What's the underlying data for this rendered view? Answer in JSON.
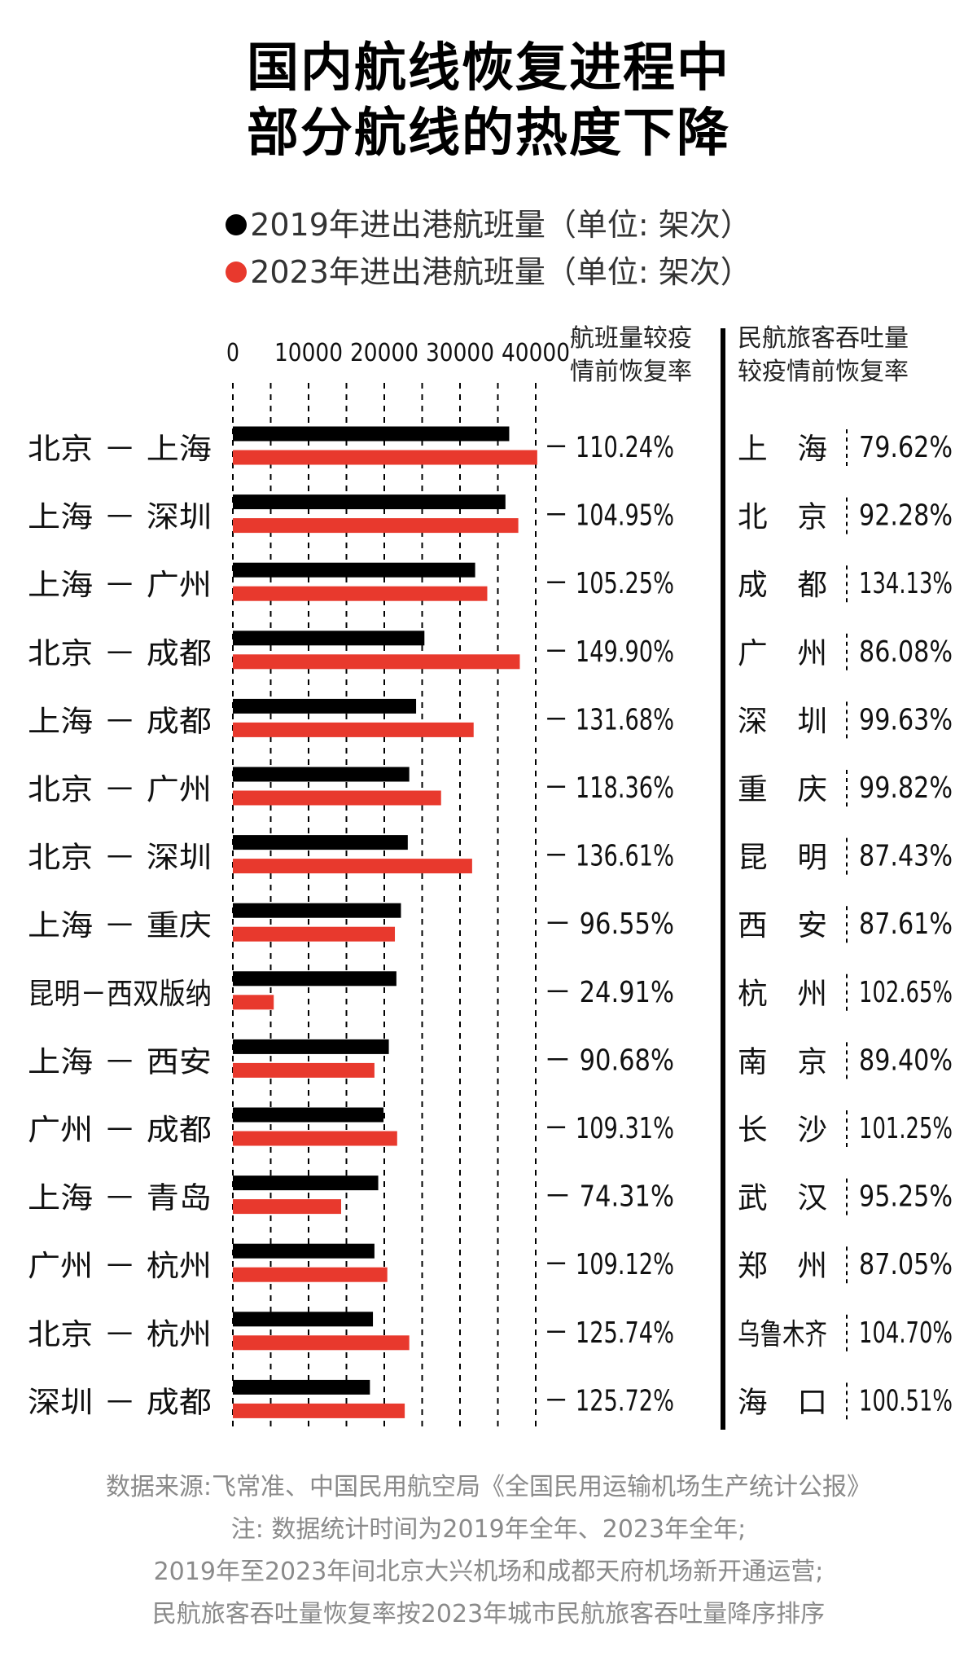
{
  "title": {
    "line1": "国内航线恢复进程中",
    "line2": "部分航线的热度下降"
  },
  "legend": [
    {
      "label": "2019年进出港航班量（单位: 架次）",
      "color": "#000000"
    },
    {
      "label": "2023年进出港航班量（单位: 架次）",
      "color": "#e8392d"
    }
  ],
  "col_headers": {
    "recovery": [
      "航班量较疫",
      "情前恢复率"
    ],
    "passenger": [
      "民航旅客吞吐量",
      "较疫情前恢复率"
    ]
  },
  "chart_data": {
    "type": "bar",
    "orientation": "horizontal",
    "xlim": [
      0,
      40000
    ],
    "x_ticks": [
      "0",
      "10000",
      "20000",
      "30000",
      "40000"
    ],
    "grid": "vertical dashed",
    "categories": [
      "北京 － 上海",
      "上海 － 深圳",
      "上海 － 广州",
      "北京 － 成都",
      "上海 － 成都",
      "北京 － 广州",
      "北京 － 深圳",
      "上海 － 重庆",
      "昆明－西双版纳",
      "上海 － 西安",
      "广州 － 成都",
      "上海 － 青岛",
      "广州 － 杭州",
      "北京 － 杭州",
      "深圳 － 成都"
    ],
    "series": [
      {
        "name": "2019年进出港航班量（单位: 架次）",
        "color": "#000000",
        "values": [
          36500,
          36000,
          32000,
          25300,
          24200,
          23300,
          23100,
          22200,
          21600,
          20600,
          19900,
          19200,
          18700,
          18500,
          18100
        ]
      },
      {
        "name": "2023年进出港航班量（单位: 架次）",
        "color": "#e8392d",
        "values": [
          40200,
          37700,
          33600,
          37900,
          31800,
          27500,
          31600,
          21400,
          5400,
          18700,
          21700,
          14300,
          20400,
          23300,
          22700
        ]
      }
    ],
    "recovery_labels": [
      "－ 110.24%",
      "－ 104.95%",
      "－ 105.25%",
      "－ 149.90%",
      "－ 131.68%",
      "－ 118.36%",
      "－ 136.61%",
      "－ 96.55%",
      "－ 24.91%",
      "－ 90.68%",
      "－ 109.31%",
      "－ 74.31%",
      "－ 109.12%",
      "－ 125.74%",
      "－ 125.72%"
    ]
  },
  "passenger_table": [
    {
      "city": "上　海",
      "rate": "79.62%"
    },
    {
      "city": "北　京",
      "rate": "92.28%"
    },
    {
      "city": "成　都",
      "rate": "134.13%"
    },
    {
      "city": "广　州",
      "rate": "86.08%"
    },
    {
      "city": "深　圳",
      "rate": "99.63%"
    },
    {
      "city": "重　庆",
      "rate": "99.82%"
    },
    {
      "city": "昆　明",
      "rate": "87.43%"
    },
    {
      "city": "西　安",
      "rate": "87.61%"
    },
    {
      "city": "杭　州",
      "rate": "102.65%"
    },
    {
      "city": "南　京",
      "rate": "89.40%"
    },
    {
      "city": "长　沙",
      "rate": "101.25%"
    },
    {
      "city": "武　汉",
      "rate": "95.25%"
    },
    {
      "city": "郑　州",
      "rate": "87.05%"
    },
    {
      "city": "乌鲁木齐",
      "rate": "104.70%"
    },
    {
      "city": "海　口",
      "rate": "100.51%"
    }
  ],
  "footer": [
    "数据来源:飞常准、中国民用航空局《全国民用运输机场生产统计公报》",
    "注: 数据统计时间为2019年全年、2023年全年;",
    "2019年至2023年间北京大兴机场和成都天府机场新开通运营;",
    "民航旅客吞吐量恢复率按2023年城市民航旅客吞吐量降序排序"
  ]
}
